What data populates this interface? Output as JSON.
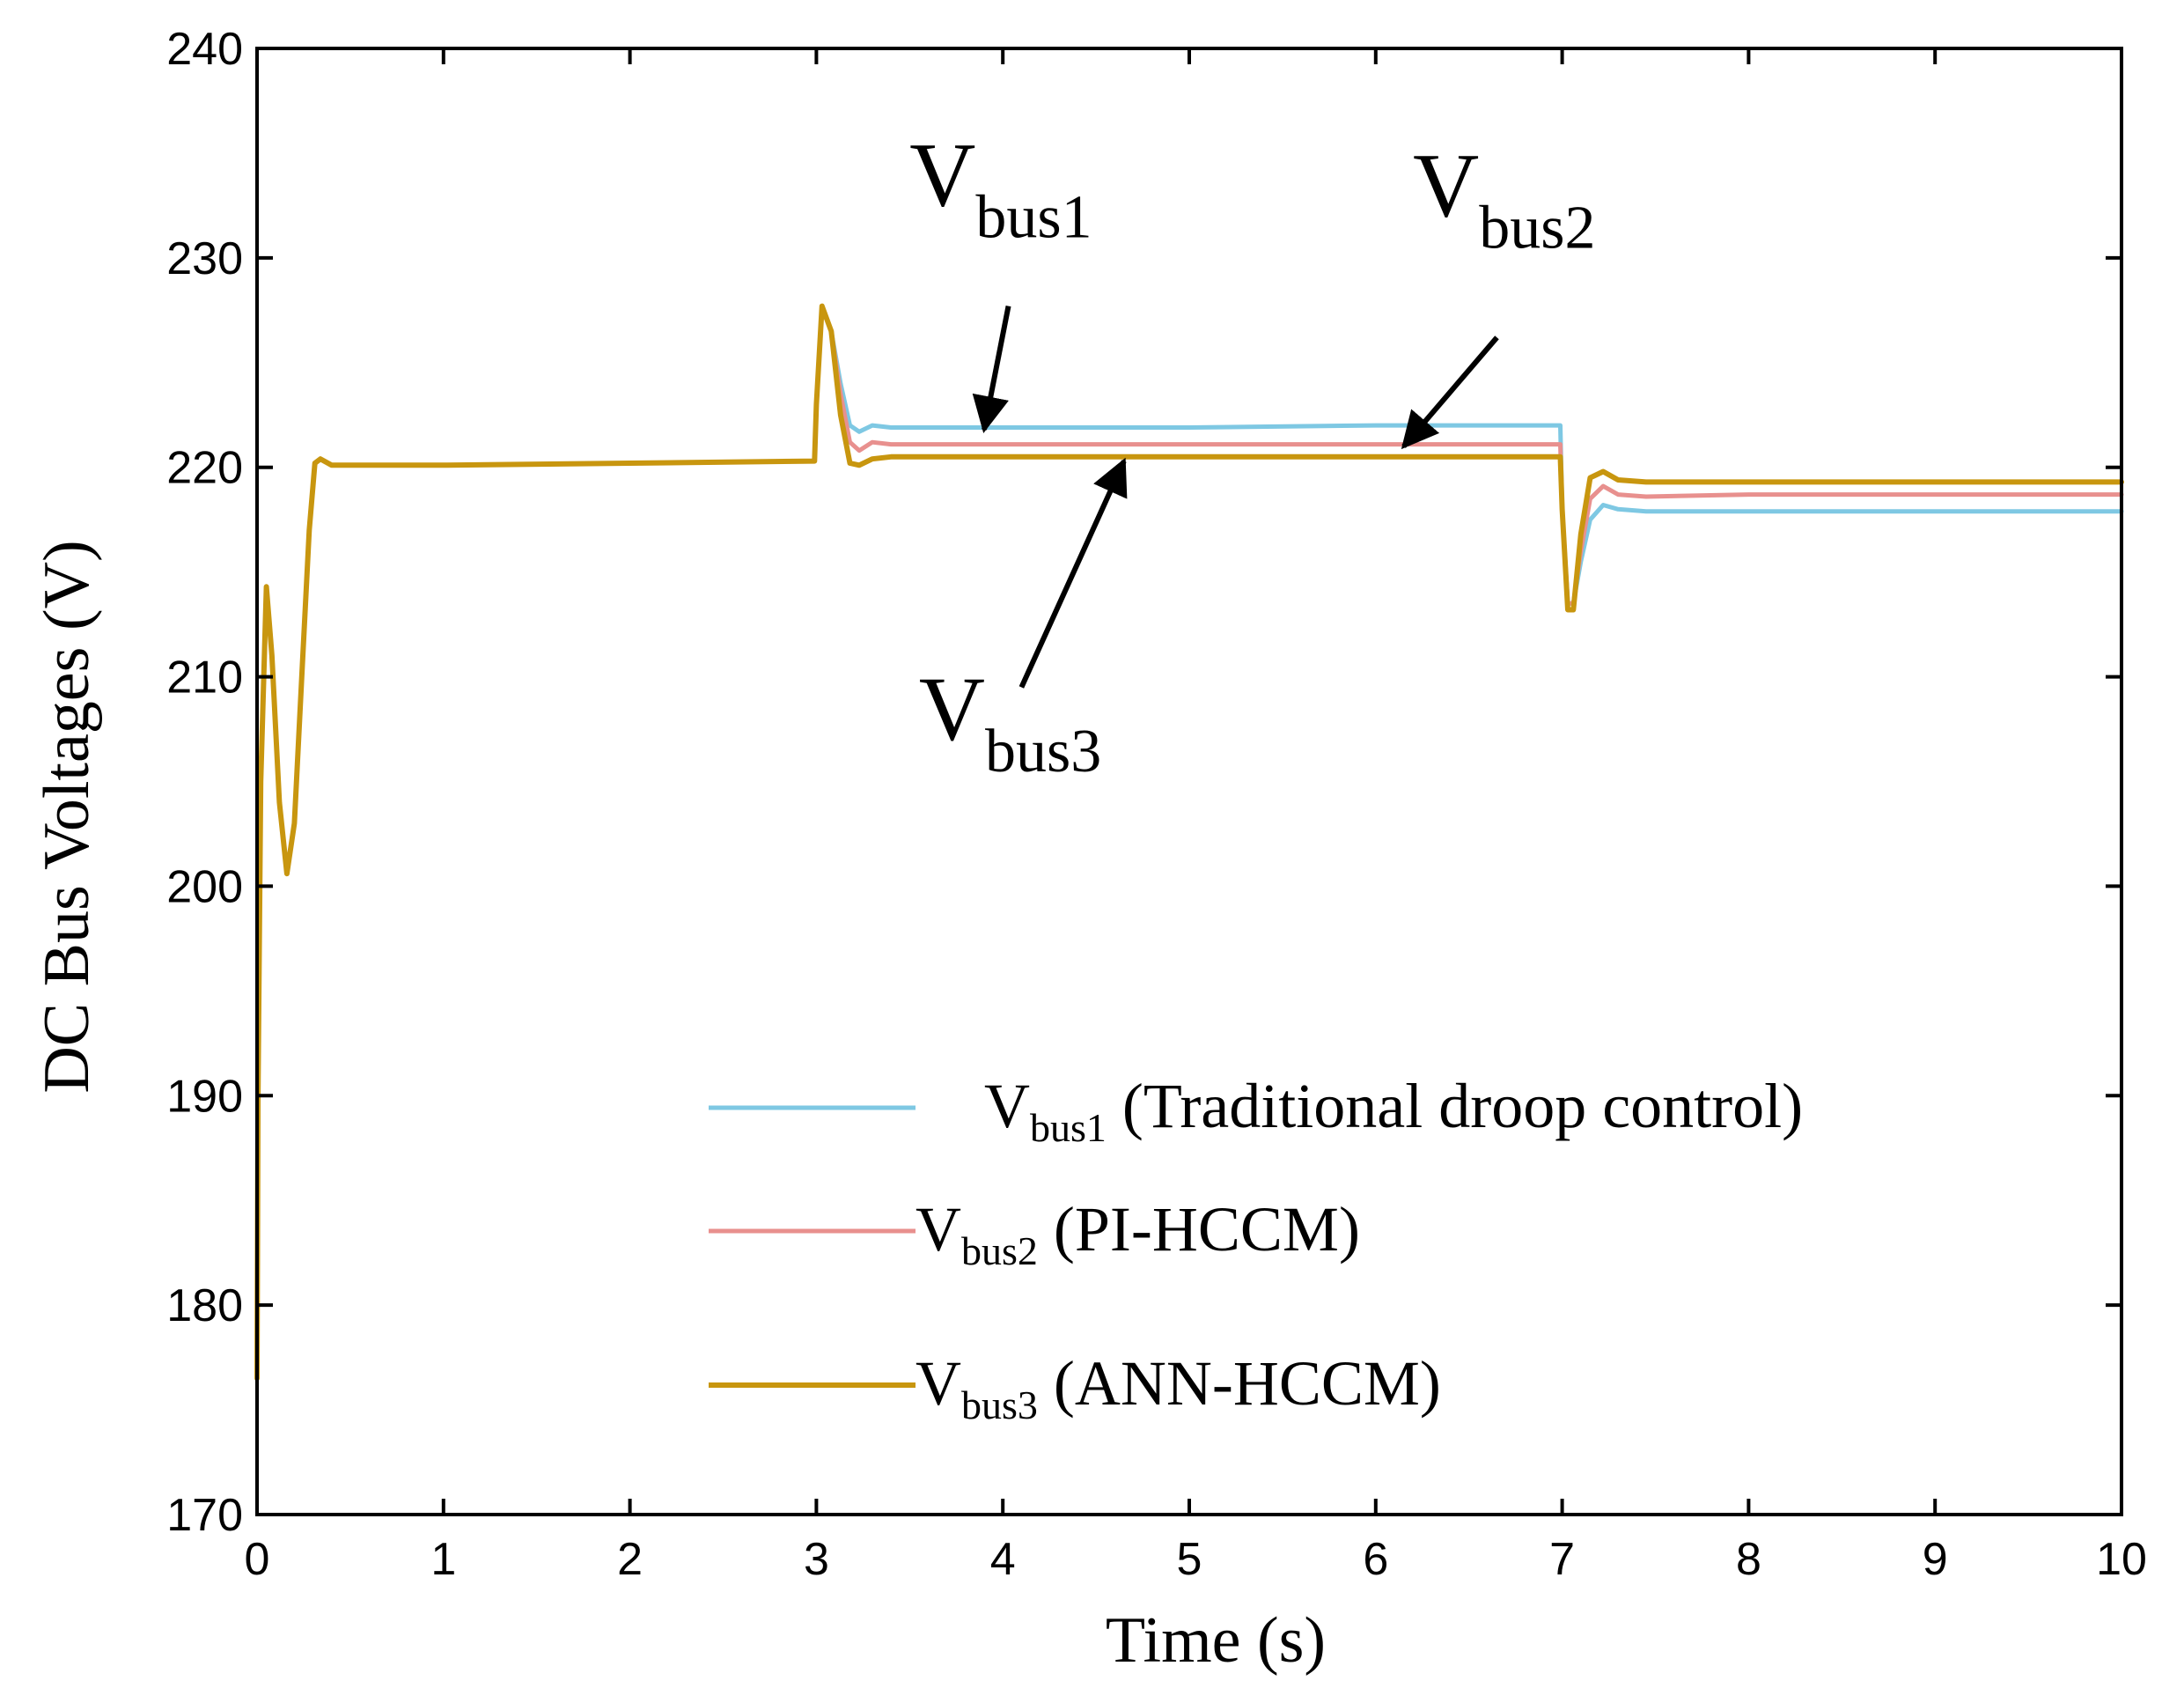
{
  "chart_data": {
    "type": "line",
    "xlabel": "Time (s)",
    "ylabel": "DC Bus Voltages (V)",
    "xlim": [
      0,
      10
    ],
    "ylim": [
      170,
      240
    ],
    "xticks": [
      "0",
      "1",
      "2",
      "3",
      "4",
      "5",
      "6",
      "7",
      "8",
      "9",
      "10"
    ],
    "yticks": [
      "170",
      "180",
      "190",
      "200",
      "210",
      "220",
      "230",
      "240"
    ],
    "grid": false,
    "legend_position": "bottom-right",
    "series": [
      {
        "name": "Vbus1 (Traditional droop control)",
        "legend_main": "V",
        "legend_sub": "bus1",
        "legend_tail": " (Traditional droop control)",
        "color": "#7ec8e3",
        "x": [
          0,
          0.005,
          0.02,
          0.05,
          0.08,
          0.12,
          0.16,
          0.2,
          0.24,
          0.28,
          0.31,
          0.34,
          0.4,
          0.6,
          1.0,
          2.0,
          2.99,
          3.0,
          3.03,
          3.08,
          3.13,
          3.18,
          3.23,
          3.3,
          3.4,
          3.6,
          4.0,
          5.0,
          6.0,
          6.99,
          7.0,
          7.03,
          7.06,
          7.1,
          7.15,
          7.22,
          7.3,
          7.45,
          8.0,
          9.0,
          10.0
        ],
        "y": [
          176.5,
          190,
          205,
          214.3,
          211,
          204,
          200.6,
          203,
          210,
          217,
          220.2,
          220.4,
          220.1,
          220.1,
          220.1,
          220.2,
          220.3,
          223,
          227.7,
          226.5,
          224,
          222,
          221.7,
          222,
          221.9,
          221.9,
          221.9,
          221.9,
          222.0,
          222.0,
          218,
          213.5,
          213.5,
          215.5,
          217.5,
          218.2,
          218,
          217.9,
          217.9,
          217.9,
          217.9
        ]
      },
      {
        "name": "Vbus2 (PI-HCCM)",
        "legend_main": "V",
        "legend_sub": "bus2",
        "legend_tail": " (PI-HCCM)",
        "color": "#e8908e",
        "x": [
          0,
          0.005,
          0.02,
          0.05,
          0.08,
          0.12,
          0.16,
          0.2,
          0.24,
          0.28,
          0.31,
          0.34,
          0.4,
          0.6,
          1.0,
          2.0,
          2.99,
          3.0,
          3.03,
          3.08,
          3.13,
          3.18,
          3.23,
          3.3,
          3.4,
          3.6,
          4.0,
          5.0,
          6.0,
          6.99,
          7.0,
          7.03,
          7.06,
          7.1,
          7.15,
          7.22,
          7.3,
          7.45,
          8.0,
          9.0,
          10.0
        ],
        "y": [
          176.5,
          190,
          205,
          214.3,
          211,
          204,
          200.6,
          203,
          210,
          217,
          220.2,
          220.4,
          220.1,
          220.1,
          220.1,
          220.2,
          220.3,
          223,
          227.7,
          226.5,
          223.5,
          221.2,
          220.8,
          221.2,
          221.1,
          221.1,
          221.1,
          221.1,
          221.1,
          221.1,
          218,
          213.5,
          213.5,
          216,
          218.5,
          219.1,
          218.7,
          218.6,
          218.7,
          218.7,
          218.7
        ]
      },
      {
        "name": "Vbus3 (ANN-HCCM)",
        "legend_main": "V",
        "legend_sub": "bus3",
        "legend_tail": " (ANN-HCCM)",
        "color": "#c8960f",
        "x": [
          0,
          0.005,
          0.02,
          0.05,
          0.08,
          0.12,
          0.16,
          0.2,
          0.24,
          0.28,
          0.31,
          0.34,
          0.4,
          0.6,
          1.0,
          2.0,
          2.99,
          3.0,
          3.03,
          3.08,
          3.13,
          3.18,
          3.23,
          3.3,
          3.4,
          3.6,
          4.0,
          5.0,
          6.0,
          6.99,
          7.0,
          7.03,
          7.06,
          7.1,
          7.15,
          7.22,
          7.3,
          7.45,
          8.0,
          9.0,
          10.0
        ],
        "y": [
          176.5,
          190,
          205,
          214.3,
          211,
          204,
          200.6,
          203,
          210,
          217,
          220.2,
          220.4,
          220.1,
          220.1,
          220.1,
          220.2,
          220.3,
          223,
          227.7,
          226.5,
          222.5,
          220.2,
          220.1,
          220.4,
          220.5,
          220.5,
          220.5,
          220.5,
          220.5,
          220.5,
          218,
          213.2,
          213.2,
          216.8,
          219.5,
          219.8,
          219.4,
          219.3,
          219.3,
          219.3,
          219.3
        ]
      }
    ],
    "annotations": [
      {
        "label_main": "V",
        "label_sub": "bus1",
        "label_x": 3.5,
        "label_y": 232.5,
        "arrow_from": [
          4.03,
          227.7
        ],
        "arrow_to": [
          3.9,
          221.8
        ]
      },
      {
        "label_main": "V",
        "label_sub": "bus2",
        "label_x": 6.2,
        "label_y": 232.0,
        "arrow_from": [
          6.65,
          226.2
        ],
        "arrow_to": [
          6.15,
          221.0
        ]
      },
      {
        "label_main": "V",
        "label_sub": "bus3",
        "label_x": 3.55,
        "label_y": 207.0,
        "arrow_from": [
          4.1,
          209.5
        ],
        "arrow_to": [
          4.65,
          220.3
        ]
      }
    ]
  }
}
